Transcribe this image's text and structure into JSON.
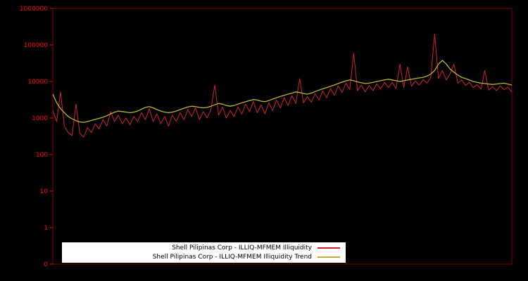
{
  "chart_data": {
    "type": "line",
    "title": "",
    "x_axis": {
      "labels_visible": false
    },
    "y_scale": "log",
    "y_tick_labels": [
      "0",
      "1",
      "10",
      "100",
      "1000",
      "10000",
      "100000",
      "1000000"
    ],
    "ylim_log": [
      1,
      1000000
    ],
    "grid": false,
    "background_color": "#000000",
    "axis_color": "#ff0000",
    "border_color": "#800000",
    "tick_label_color": "#ff0000",
    "legend": {
      "position": "bottom-center",
      "background": "#ffffff",
      "text_color": "#000000"
    },
    "series": [
      {
        "name": "Shell Pilipinas Corp - ILLIQ-MFMEM Illiquidity",
        "color": "#d0202e",
        "values": [
          1600,
          800,
          5200,
          600,
          400,
          330,
          2400,
          380,
          300,
          550,
          400,
          700,
          500,
          900,
          600,
          1500,
          800,
          1200,
          700,
          1000,
          650,
          1100,
          800,
          1400,
          900,
          1800,
          800,
          1300,
          700,
          1100,
          600,
          1200,
          800,
          1400,
          900,
          1700,
          1100,
          1900,
          900,
          1500,
          1000,
          1700,
          8000,
          1200,
          2000,
          1000,
          1600,
          1100,
          2000,
          1300,
          2400,
          1500,
          2800,
          1400,
          2300,
          1300,
          2600,
          1600,
          3100,
          1900,
          3600,
          2200,
          4100,
          2500,
          12000,
          2600,
          3900,
          2700,
          4600,
          3100,
          5500,
          3600,
          6400,
          4200,
          7600,
          5000,
          9000,
          6000,
          60000,
          5600,
          8000,
          5200,
          7800,
          5600,
          8600,
          6200,
          9500,
          6800,
          9500,
          6400,
          30000,
          6800,
          25000,
          7400,
          10400,
          8000,
          11200,
          9000,
          13000,
          200000,
          12000,
          20000,
          11000,
          16000,
          30000,
          9000,
          11000,
          7800,
          9500,
          6800,
          8200,
          6200,
          20000,
          5800,
          7200,
          5600,
          7600,
          6000,
          7000,
          5200
        ]
      },
      {
        "name": "Shell Pilipinas Corp - ILLIQ-MFMEM Illiquidity Trend",
        "color": "#bdb12f",
        "values": [
          4500,
          2600,
          1800,
          1400,
          1100,
          950,
          850,
          780,
          760,
          800,
          860,
          920,
          980,
          1050,
          1150,
          1300,
          1450,
          1550,
          1500,
          1450,
          1400,
          1450,
          1550,
          1750,
          1950,
          2050,
          1900,
          1700,
          1550,
          1450,
          1400,
          1450,
          1550,
          1700,
          1850,
          2000,
          2100,
          2050,
          1950,
          1900,
          1950,
          2100,
          2300,
          2500,
          2400,
          2200,
          2100,
          2200,
          2400,
          2600,
          2800,
          3000,
          3200,
          3100,
          2900,
          2800,
          3000,
          3300,
          3600,
          3900,
          4200,
          4500,
          4800,
          5200,
          5000,
          4700,
          4500,
          4800,
          5300,
          5800,
          6300,
          6800,
          7400,
          8000,
          8800,
          9600,
          10400,
          11000,
          10500,
          9800,
          9200,
          8800,
          9000,
          9500,
          10000,
          10500,
          11000,
          11500,
          11000,
          10500,
          10000,
          10500,
          11000,
          11500,
          12000,
          12500,
          13000,
          14000,
          16000,
          20000,
          30000,
          38000,
          30000,
          22000,
          18000,
          15000,
          13000,
          12000,
          11000,
          10000,
          9500,
          9000,
          8800,
          8500,
          8300,
          8500,
          8800,
          9000,
          8500,
          8000
        ]
      }
    ]
  }
}
